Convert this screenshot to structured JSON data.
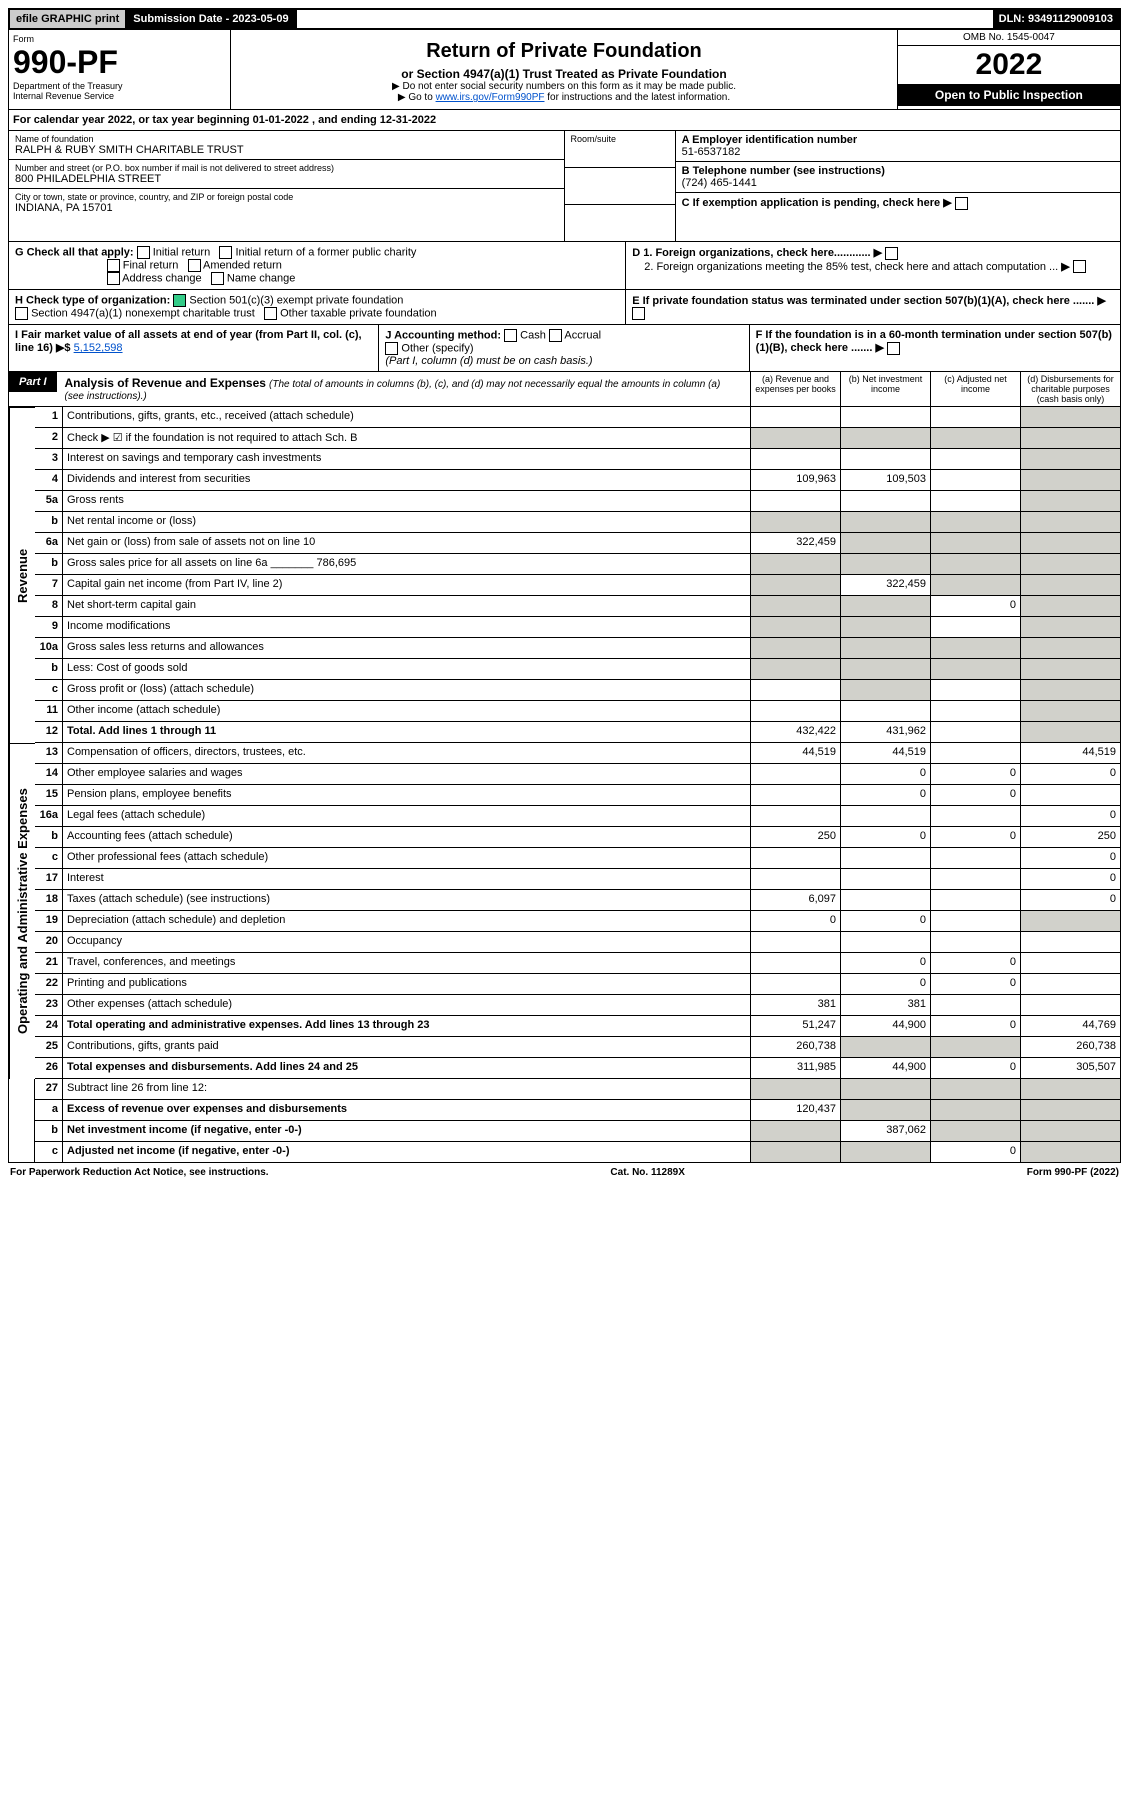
{
  "colors": {
    "black": "#000000",
    "white": "#ffffff",
    "shade": "#d1d1cb",
    "link": "#0052cc",
    "check_green": "#33cc88",
    "top_btn_gray": "#cccccc"
  },
  "topbar": {
    "efile": "efile GRAPHIC print",
    "submission": "Submission Date - 2023-05-09",
    "dln": "DLN: 93491129009103"
  },
  "header": {
    "form_label": "Form",
    "form_number": "990-PF",
    "dept": "Department of the Treasury",
    "irs": "Internal Revenue Service",
    "title": "Return of Private Foundation",
    "subtitle": "or Section 4947(a)(1) Trust Treated as Private Foundation",
    "note1": "▶ Do not enter social security numbers on this form as it may be made public.",
    "note2_pre": "▶ Go to ",
    "note2_link": "www.irs.gov/Form990PF",
    "note2_post": " for instructions and the latest information.",
    "omb": "OMB No. 1545-0047",
    "year": "2022",
    "inspect": "Open to Public Inspection"
  },
  "calendar_year": "For calendar year 2022, or tax year beginning 01-01-2022              , and ending 12-31-2022",
  "foundation": {
    "name_label": "Name of foundation",
    "name": "RALPH & RUBY SMITH CHARITABLE TRUST",
    "addr_label": "Number and street (or P.O. box number if mail is not delivered to street address)",
    "addr": "800 PHILADELPHIA STREET",
    "room_label": "Room/suite",
    "city_label": "City or town, state or province, country, and ZIP or foreign postal code",
    "city": "INDIANA, PA  15701",
    "ein_label": "A Employer identification number",
    "ein": "51-6537182",
    "phone_label": "B Telephone number (see instructions)",
    "phone": "(724) 465-1441",
    "exemption_label": "C If exemption application is pending, check here"
  },
  "sectionG": {
    "label": "G Check all that apply:",
    "opts": [
      "Initial return",
      "Final return",
      "Address change",
      "Initial return of a former public charity",
      "Amended return",
      "Name change"
    ]
  },
  "sectionD": {
    "d1": "D 1. Foreign organizations, check here............",
    "d2": "2. Foreign organizations meeting the 85% test, check here and attach computation ..."
  },
  "sectionH": {
    "label": "H Check type of organization:",
    "opt1": "Section 501(c)(3) exempt private foundation",
    "opt2": "Section 4947(a)(1) nonexempt charitable trust",
    "opt3": "Other taxable private foundation"
  },
  "sectionE": "E  If private foundation status was terminated under section 507(b)(1)(A), check here .......",
  "sectionI": {
    "label": "I Fair market value of all assets at end of year (from Part II, col. (c), line 16) ▶$",
    "value": "5,152,598"
  },
  "sectionJ": {
    "label": "J Accounting method:",
    "cash": "Cash",
    "accrual": "Accrual",
    "other": "Other (specify)",
    "note": "(Part I, column (d) must be on cash basis.)"
  },
  "sectionF": "F  If the foundation is in a 60-month termination under section 507(b)(1)(B), check here .......",
  "part1": {
    "tag": "Part I",
    "title": "Analysis of Revenue and Expenses",
    "note": "(The total of amounts in columns (b), (c), and (d) may not necessarily equal the amounts in column (a) (see instructions).)",
    "col_a": "(a) Revenue and expenses per books",
    "col_b": "(b) Net investment income",
    "col_c": "(c) Adjusted net income",
    "col_d": "(d) Disbursements for charitable purposes (cash basis only)"
  },
  "side_labels": {
    "revenue": "Revenue",
    "expenses": "Operating and Administrative Expenses"
  },
  "rows": [
    {
      "n": "1",
      "d": "Contributions, gifts, grants, etc., received (attach schedule)",
      "a": "",
      "b": "",
      "c": "",
      "dcol": "",
      "shade_d": true
    },
    {
      "n": "2",
      "d": "Check ▶ ☑ if the foundation is not required to attach Sch. B",
      "a": "",
      "b": "",
      "c": "",
      "dcol": "",
      "shade_all": true
    },
    {
      "n": "3",
      "d": "Interest on savings and temporary cash investments",
      "a": "",
      "b": "",
      "c": "",
      "dcol": "",
      "shade_d": true
    },
    {
      "n": "4",
      "d": "Dividends and interest from securities",
      "a": "109,963",
      "b": "109,503",
      "c": "",
      "dcol": "",
      "shade_d": true
    },
    {
      "n": "5a",
      "d": "Gross rents",
      "a": "",
      "b": "",
      "c": "",
      "dcol": "",
      "shade_d": true
    },
    {
      "n": "b",
      "d": "Net rental income or (loss)",
      "a": "",
      "b": "",
      "c": "",
      "dcol": "",
      "shade_all": true
    },
    {
      "n": "6a",
      "d": "Net gain or (loss) from sale of assets not on line 10",
      "a": "322,459",
      "b": "",
      "c": "",
      "dcol": "",
      "shade_bcd": true
    },
    {
      "n": "b",
      "d": "Gross sales price for all assets on line 6a _______ 786,695",
      "a": "",
      "b": "",
      "c": "",
      "dcol": "",
      "shade_all": true
    },
    {
      "n": "7",
      "d": "Capital gain net income (from Part IV, line 2)",
      "a": "",
      "b": "322,459",
      "c": "",
      "dcol": "",
      "shade_acd": true,
      "shade_a": true,
      "shade_c": true,
      "shade_d": true
    },
    {
      "n": "8",
      "d": "Net short-term capital gain",
      "a": "",
      "b": "",
      "c": "0",
      "dcol": "",
      "shade_abd": true
    },
    {
      "n": "9",
      "d": "Income modifications",
      "a": "",
      "b": "",
      "c": "",
      "dcol": "",
      "shade_abd": true
    },
    {
      "n": "10a",
      "d": "Gross sales less returns and allowances",
      "a": "",
      "b": "",
      "c": "",
      "dcol": "",
      "shade_all": true
    },
    {
      "n": "b",
      "d": "Less: Cost of goods sold",
      "a": "",
      "b": "",
      "c": "",
      "dcol": "",
      "shade_all": true
    },
    {
      "n": "c",
      "d": "Gross profit or (loss) (attach schedule)",
      "a": "",
      "b": "",
      "c": "",
      "dcol": "",
      "shade_bd": true
    },
    {
      "n": "11",
      "d": "Other income (attach schedule)",
      "a": "",
      "b": "",
      "c": "",
      "dcol": "",
      "shade_d": true
    },
    {
      "n": "12",
      "d": "Total. Add lines 1 through 11",
      "a": "432,422",
      "b": "431,962",
      "c": "",
      "dcol": "",
      "bold": true,
      "shade_d": true
    }
  ],
  "exp_rows": [
    {
      "n": "13",
      "d": "Compensation of officers, directors, trustees, etc.",
      "a": "44,519",
      "b": "44,519",
      "c": "",
      "dcol": "44,519"
    },
    {
      "n": "14",
      "d": "Other employee salaries and wages",
      "a": "",
      "b": "0",
      "c": "0",
      "dcol": "0"
    },
    {
      "n": "15",
      "d": "Pension plans, employee benefits",
      "a": "",
      "b": "0",
      "c": "0",
      "dcol": ""
    },
    {
      "n": "16a",
      "d": "Legal fees (attach schedule)",
      "a": "",
      "b": "",
      "c": "",
      "dcol": "0"
    },
    {
      "n": "b",
      "d": "Accounting fees (attach schedule)",
      "a": "250",
      "b": "0",
      "c": "0",
      "dcol": "250"
    },
    {
      "n": "c",
      "d": "Other professional fees (attach schedule)",
      "a": "",
      "b": "",
      "c": "",
      "dcol": "0"
    },
    {
      "n": "17",
      "d": "Interest",
      "a": "",
      "b": "",
      "c": "",
      "dcol": "0"
    },
    {
      "n": "18",
      "d": "Taxes (attach schedule) (see instructions)",
      "a": "6,097",
      "b": "",
      "c": "",
      "dcol": "0"
    },
    {
      "n": "19",
      "d": "Depreciation (attach schedule) and depletion",
      "a": "0",
      "b": "0",
      "c": "",
      "dcol": "",
      "shade_d": true
    },
    {
      "n": "20",
      "d": "Occupancy",
      "a": "",
      "b": "",
      "c": "",
      "dcol": ""
    },
    {
      "n": "21",
      "d": "Travel, conferences, and meetings",
      "a": "",
      "b": "0",
      "c": "0",
      "dcol": ""
    },
    {
      "n": "22",
      "d": "Printing and publications",
      "a": "",
      "b": "0",
      "c": "0",
      "dcol": ""
    },
    {
      "n": "23",
      "d": "Other expenses (attach schedule)",
      "a": "381",
      "b": "381",
      "c": "",
      "dcol": ""
    },
    {
      "n": "24",
      "d": "Total operating and administrative expenses. Add lines 13 through 23",
      "a": "51,247",
      "b": "44,900",
      "c": "0",
      "dcol": "44,769",
      "bold": true
    },
    {
      "n": "25",
      "d": "Contributions, gifts, grants paid",
      "a": "260,738",
      "b": "",
      "c": "",
      "dcol": "260,738",
      "shade_bc": true
    },
    {
      "n": "26",
      "d": "Total expenses and disbursements. Add lines 24 and 25",
      "a": "311,985",
      "b": "44,900",
      "c": "0",
      "dcol": "305,507",
      "bold": true
    }
  ],
  "final_rows": [
    {
      "n": "27",
      "d": "Subtract line 26 from line 12:",
      "a": "",
      "b": "",
      "c": "",
      "dcol": "",
      "shade_all": true
    },
    {
      "n": "a",
      "d": "Excess of revenue over expenses and disbursements",
      "a": "120,437",
      "b": "",
      "c": "",
      "dcol": "",
      "bold": true,
      "shade_bcd": true
    },
    {
      "n": "b",
      "d": "Net investment income (if negative, enter -0-)",
      "a": "",
      "b": "387,062",
      "c": "",
      "dcol": "",
      "bold": true,
      "shade_acd": true
    },
    {
      "n": "c",
      "d": "Adjusted net income (if negative, enter -0-)",
      "a": "",
      "b": "",
      "c": "0",
      "dcol": "",
      "bold": true,
      "shade_abd": true
    }
  ],
  "footer": {
    "left": "For Paperwork Reduction Act Notice, see instructions.",
    "mid": "Cat. No. 11289X",
    "right": "Form 990-PF (2022)"
  }
}
